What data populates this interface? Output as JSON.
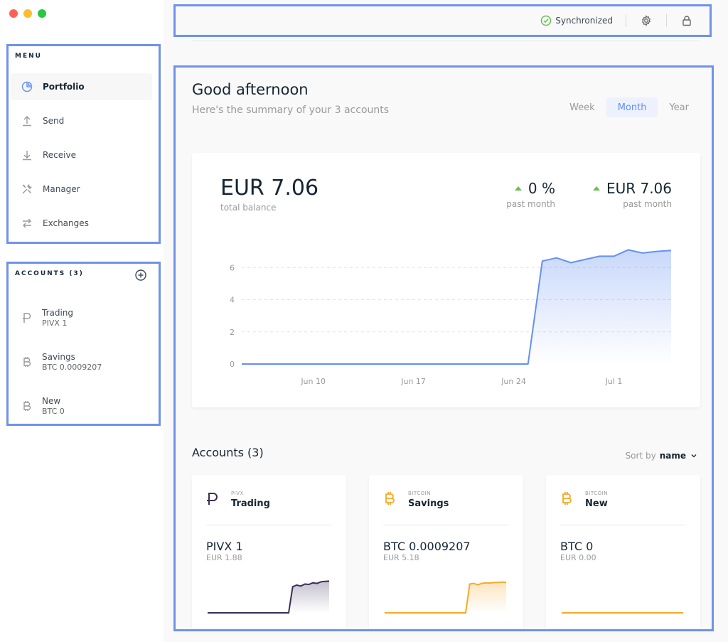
{
  "menu": {
    "title": "MENU",
    "items": [
      {
        "label": "Portfolio",
        "icon": "pie-chart-icon"
      },
      {
        "label": "Send",
        "icon": "upload-icon"
      },
      {
        "label": "Receive",
        "icon": "download-icon"
      },
      {
        "label": "Manager",
        "icon": "tools-icon"
      },
      {
        "label": "Exchanges",
        "icon": "exchange-icon"
      }
    ]
  },
  "accounts_sidebar": {
    "title": "ACCOUNTS (3)",
    "items": [
      {
        "name": "Trading",
        "balance": "PIVX 1",
        "icon": "pivx-icon"
      },
      {
        "name": "Savings",
        "balance": "BTC 0.0009207",
        "icon": "bitcoin-icon"
      },
      {
        "name": "New",
        "balance": "BTC 0",
        "icon": "bitcoin-icon"
      }
    ]
  },
  "topbar": {
    "sync_label": "Synchronized",
    "sync_color": "#66be54"
  },
  "dashboard": {
    "greeting": "Good afternoon",
    "summary": "Here's the summary of your 3 accounts",
    "ranges": [
      "Week",
      "Month",
      "Year"
    ],
    "active_range": "Month",
    "total_balance": "EUR 7.06",
    "total_balance_label": "total balance",
    "change_pct": "0 %",
    "change_pct_label": "past month",
    "change_value": "EUR 7.06",
    "change_value_label": "past month"
  },
  "chart_data": {
    "type": "area",
    "title": "",
    "xlabel": "",
    "ylabel": "",
    "x_ticks": [
      "Jun 10",
      "Jun 17",
      "Jun 24",
      "Jul 1"
    ],
    "y_ticks": [
      0,
      2,
      4,
      6
    ],
    "ylim": [
      0,
      8
    ],
    "grid": true,
    "color": "#6490f1",
    "series": [
      {
        "x": [
          "Jun 5",
          "Jun 6",
          "Jun 7",
          "Jun 8",
          "Jun 9",
          "Jun 10",
          "Jun 11",
          "Jun 12",
          "Jun 13",
          "Jun 14",
          "Jun 15",
          "Jun 16",
          "Jun 17",
          "Jun 18",
          "Jun 19",
          "Jun 20",
          "Jun 21",
          "Jun 22",
          "Jun 23",
          "Jun 24",
          "Jun 25",
          "Jun 26",
          "Jun 27",
          "Jun 28",
          "Jun 29",
          "Jun 30",
          "Jul 1",
          "Jul 2",
          "Jul 3",
          "Jul 4",
          "Jul 5"
        ],
        "values": [
          0,
          0,
          0,
          0,
          0,
          0,
          0,
          0,
          0,
          0,
          0,
          0,
          0,
          0,
          0,
          0,
          0,
          0,
          0,
          0,
          0,
          6.4,
          6.6,
          6.3,
          6.5,
          6.7,
          6.7,
          7.1,
          6.9,
          7.0,
          7.06
        ]
      }
    ]
  },
  "accounts_section": {
    "title": "Accounts (3)",
    "sort_label": "Sort by",
    "sort_value": "name"
  },
  "account_cards": [
    {
      "currency": "PIVX",
      "name": "Trading",
      "balance": "PIVX 1",
      "fiat": "EUR 1.88",
      "icon": "pivx-icon",
      "color": "#3b2e5a",
      "spark": [
        0,
        0,
        0,
        0,
        0,
        0,
        0,
        0,
        0,
        0,
        0,
        0,
        0,
        0,
        0,
        0,
        0,
        0,
        0,
        0,
        0,
        0.8,
        0.85,
        0.82,
        0.88,
        0.87,
        0.92,
        0.9,
        0.95,
        0.96,
        0.97
      ]
    },
    {
      "currency": "BITCOIN",
      "name": "Savings",
      "balance": "BTC 0.0009207",
      "fiat": "EUR 5.18",
      "icon": "bitcoin-icon",
      "color": "#f7a928",
      "spark": [
        0,
        0,
        0,
        0,
        0,
        0,
        0,
        0,
        0,
        0,
        0,
        0,
        0,
        0,
        0,
        0,
        0,
        0,
        0,
        0,
        0,
        0.88,
        0.9,
        0.86,
        0.9,
        0.92,
        0.91,
        0.93,
        0.93,
        0.94,
        0.93
      ]
    },
    {
      "currency": "BITCOIN",
      "name": "New",
      "balance": "BTC 0",
      "fiat": "EUR 0.00",
      "icon": "bitcoin-icon",
      "color": "#f7a928",
      "spark": [
        0,
        0,
        0,
        0,
        0,
        0,
        0,
        0,
        0,
        0,
        0,
        0,
        0,
        0,
        0,
        0,
        0,
        0,
        0,
        0,
        0,
        0,
        0,
        0,
        0,
        0,
        0,
        0,
        0,
        0,
        0
      ]
    }
  ]
}
